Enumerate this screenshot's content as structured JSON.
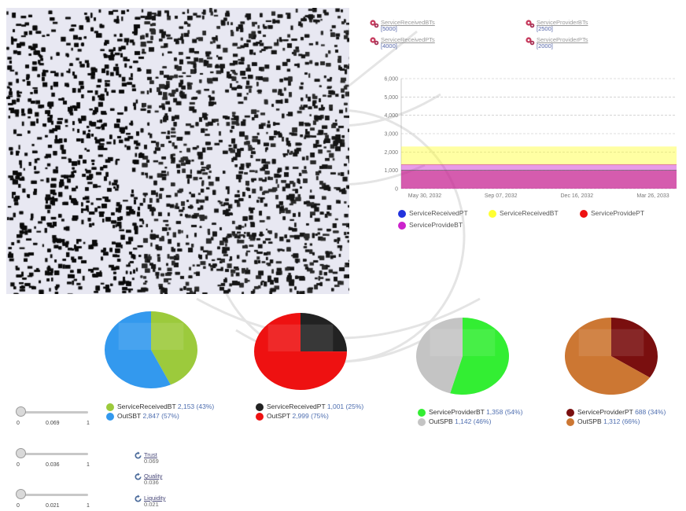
{
  "top_legend": [
    {
      "label": "ServiceReceivedBTs",
      "value": "[5000]",
      "icon": "gears-icon"
    },
    {
      "label": "ServiceProviderBTs",
      "value": "[2500]",
      "icon": "gears-icon"
    },
    {
      "label": "ServiceReceivedPTs",
      "value": "[4000]",
      "icon": "gears-icon"
    },
    {
      "label": "ServiceProviderPTs",
      "value": "[2000]",
      "icon": "gears-icon"
    }
  ],
  "chart_data": [
    {
      "type": "area",
      "x_ticks": [
        "May 30, 2032",
        "Sep 07, 2032",
        "Dec 16, 2032",
        "Mar 26, 2033"
      ],
      "y_ticks": [
        "6,000",
        "5,000",
        "4,000",
        "3,000",
        "2,000",
        "1,000",
        "0"
      ],
      "ylim": [
        0,
        6000
      ],
      "grid": true,
      "series": [
        {
          "name": "ServiceReceivedPT",
          "color": "#2233dd",
          "band": [
            0,
            1000
          ]
        },
        {
          "name": "ServiceReceivedBT",
          "color": "#ffff33",
          "band": [
            1300,
            2300
          ]
        },
        {
          "name": "ServiceProvidePT",
          "color": "#ee1111",
          "band": [
            0,
            1000
          ]
        },
        {
          "name": "ServiceProvideBT",
          "color": "#cc22cc",
          "band": [
            0,
            1300
          ]
        }
      ]
    },
    {
      "type": "pie",
      "slices": [
        {
          "name": "ServiceReceivedBT",
          "value": 2153,
          "value_text": "2,153",
          "pct": "(43%)",
          "color": "#9cca3c"
        },
        {
          "name": "OutSBT",
          "value": 2847,
          "value_text": "2,847",
          "pct": "(57%)",
          "color": "#3399ee"
        }
      ]
    },
    {
      "type": "pie",
      "slices": [
        {
          "name": "ServiceReceivedPT",
          "value": 1001,
          "value_text": "1,001",
          "pct": "(25%)",
          "color": "#222222"
        },
        {
          "name": "OutSPT",
          "value": 2999,
          "value_text": "2,999",
          "pct": "(75%)",
          "color": "#ee1111"
        }
      ]
    },
    {
      "type": "pie",
      "slices": [
        {
          "name": "ServiceProviderBT",
          "value": 1358,
          "value_text": "1,358",
          "pct": "(54%)",
          "color": "#33ee33"
        },
        {
          "name": "OutSPB",
          "value": 1142,
          "value_text": "1,142",
          "pct": "(46%)",
          "color": "#c4c4c4"
        }
      ]
    },
    {
      "type": "pie",
      "slices": [
        {
          "name": "ServiceProviderPT",
          "value": 688,
          "value_text": "688",
          "pct": "(34%)",
          "color": "#7a0f0f"
        },
        {
          "name": "OutSPB",
          "value": 1312,
          "value_text": "1,312",
          "pct": "(66%)",
          "color": "#cc7733"
        }
      ]
    }
  ],
  "sliders": [
    {
      "min": "0",
      "value": "0.069",
      "max": "1"
    },
    {
      "min": "0",
      "value": "0.036",
      "max": "1"
    },
    {
      "min": "0",
      "value": "0.021",
      "max": "1"
    }
  ],
  "metrics": [
    {
      "name": "Trust",
      "value": "0.069",
      "icon": "refresh-icon"
    },
    {
      "name": "Quality",
      "value": "0.036",
      "icon": "refresh-icon"
    },
    {
      "name": "Liquidity",
      "value": "0.021",
      "icon": "refresh-icon"
    }
  ]
}
